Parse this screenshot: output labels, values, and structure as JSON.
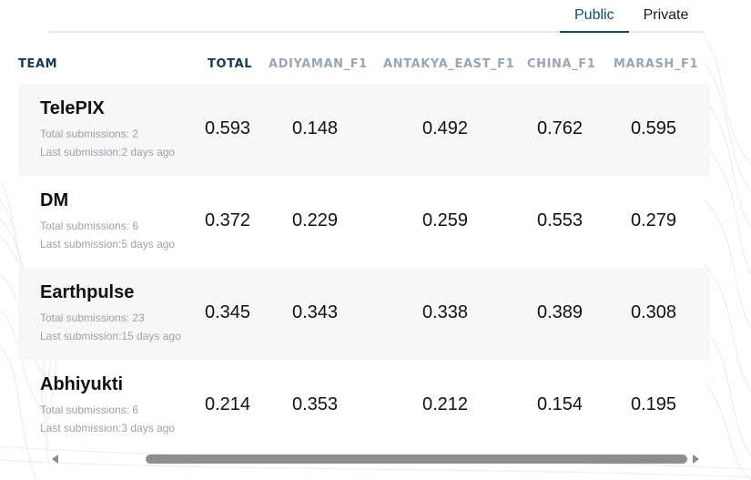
{
  "tabs": [
    {
      "label": "Public",
      "active": true
    },
    {
      "label": "Private",
      "active": false
    }
  ],
  "columns": [
    "TEAM",
    "TOTAL",
    "ADIYAMAN_F1",
    "ANTAKYA_EAST_F1",
    "CHINA_F1",
    "MARASH_F1"
  ],
  "rows": [
    {
      "team": "TelePIX",
      "submissions": "Total submissions: 2",
      "last": "Last submission:2 days ago",
      "total": "0.593",
      "adiyaman": "0.148",
      "antakya": "0.492",
      "china": "0.762",
      "marash": "0.595"
    },
    {
      "team": "DM",
      "submissions": "Total submissions: 6",
      "last": "Last submission:5 days ago",
      "total": "0.372",
      "adiyaman": "0.229",
      "antakya": "0.259",
      "china": "0.553",
      "marash": "0.279"
    },
    {
      "team": "Earthpulse",
      "submissions": "Total submissions: 23",
      "last": "Last submission:15 days ago",
      "total": "0.345",
      "adiyaman": "0.343",
      "antakya": "0.338",
      "china": "0.389",
      "marash": "0.308"
    },
    {
      "team": "Abhiyukti",
      "submissions": "Total submissions: 6",
      "last": "Last submission:3 days ago",
      "total": "0.214",
      "adiyaman": "0.353",
      "antakya": "0.212",
      "china": "0.154",
      "marash": "0.195"
    }
  ],
  "scrollbar": {
    "position": 0.95
  },
  "colors": {
    "accent": "#0e4d64",
    "header_muted": "#97a7b5",
    "header_dark": "#16395a",
    "row_shade": "#f7f7f8",
    "meta_text": "#9aa2aa"
  },
  "icons": {
    "scroll_left": "scroll-left-arrow-icon",
    "scroll_right": "scroll-right-arrow-icon"
  }
}
